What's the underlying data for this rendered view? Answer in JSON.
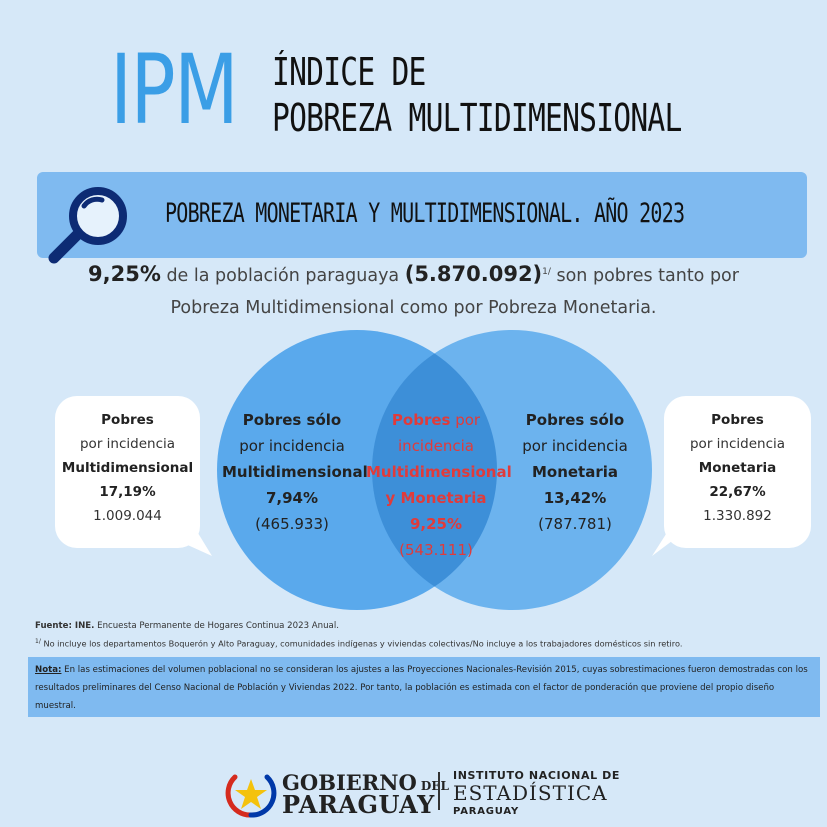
{
  "header": {
    "acronym": "IPM",
    "title_line1": "ÍNDICE DE",
    "title_line2": "POBREZA MULTIDIMENSIONAL"
  },
  "banner": {
    "icon": "magnifier-icon",
    "text": "POBREZA MONETARIA Y MULTIDIMENSIONAL. AÑO 2023"
  },
  "summary": {
    "pct": "9,25%",
    "text1": " de la población paraguaya ",
    "count": "(5.870.092)",
    "sup": "1/",
    "text2": " son pobres tanto por",
    "line2": "Pobreza Multidimensional como por Pobreza Monetaria."
  },
  "left_bubble": {
    "l1": "Pobres",
    "l2": "por incidencia",
    "l3": "Multidimensional",
    "pct": "17,19%",
    "count": "1.009.044"
  },
  "right_bubble": {
    "l1": "Pobres",
    "l2": "por incidencia",
    "l3": "Monetaria",
    "pct": "22,67%",
    "count": "1.330.892"
  },
  "venn": {
    "left": {
      "l1": "Pobres sólo",
      "l2": "por incidencia",
      "l3": "Multidimensional",
      "pct": "7,94%",
      "count": "(465.933)"
    },
    "center": {
      "l1a": "Pobres",
      "l1b": " por",
      "l2": "incidencia",
      "l3": "Multidimensional",
      "l4": "y Monetaria",
      "pct": "9,25%",
      "count": "(543.111)"
    },
    "right": {
      "l1": "Pobres sólo",
      "l2": "por incidencia",
      "l3": "Monetaria",
      "pct": "13,42%",
      "count": "(787.781)"
    },
    "colors": {
      "circle": "#5aa9ec",
      "overlap": "#3d8fd8",
      "accent": "#e03b3b"
    }
  },
  "footnotes": {
    "source_label": "Fuente: INE.",
    "source_text": " Encuesta Permanente de Hogares Continua 2023 Anual.",
    "note1_sup": "1/",
    "note1_text": " No incluye los departamentos Boquerón y Alto Paraguay, comunidades indígenas y viviendas colectivas/No incluye a los trabajadores domésticos sin retiro.",
    "nota_label": "Nota:",
    "nota_text": " En las estimaciones del volumen poblacional no se consideran los ajustes a las Proyecciones Nacionales-Revisión 2015, cuyas sobrestimaciones fueron demostradas con los resultados preliminares del Censo Nacional de Población y Viviendas 2022. Por tanto, la población es estimada con el factor de ponderación que proviene del propio diseño muestral."
  },
  "logos": {
    "gov_icon": "paraguay-star-seal-icon",
    "gov_line1": "GOBIERNO",
    "gov_del": " DEL",
    "gov_line2": "PARAGUAY",
    "ine_line1": "INSTITUTO NACIONAL DE",
    "ine_line2": "ESTADÍSTICA",
    "ine_line3": "PARAGUAY"
  }
}
